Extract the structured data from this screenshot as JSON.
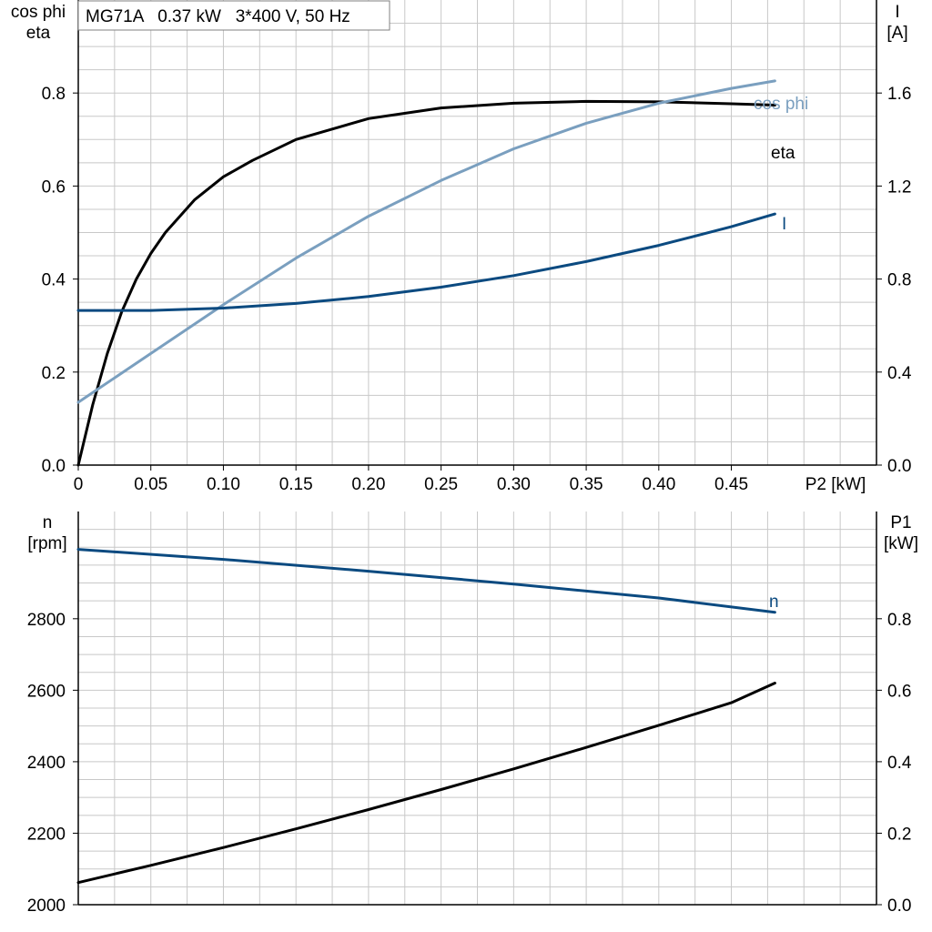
{
  "colors": {
    "eta": "#000000",
    "cos_phi": "#7a9fbf",
    "I": "#0b4a80",
    "n": "#0b4a80",
    "P1": "#000000",
    "grid": "#c8c8c8"
  },
  "chart_data": [
    {
      "type": "line",
      "title": "MG71A   0.37 kW   3*400 V, 50 Hz",
      "xlabel": "P2 [kW]",
      "ylabel_left": [
        "cos phi",
        "eta"
      ],
      "ylabel_right": [
        "I",
        "[A]"
      ],
      "xlim": [
        0,
        0.55
      ],
      "ylim_left": [
        0,
        1.0
      ],
      "ylim_right": [
        0,
        2.0
      ],
      "x_ticks": [
        "0",
        "0.05",
        "0.10",
        "0.15",
        "0.20",
        "0.25",
        "0.30",
        "0.35",
        "0.40",
        "0.45"
      ],
      "y_left_ticks": [
        "0.0",
        "0.2",
        "0.4",
        "0.6",
        "0.8"
      ],
      "y_right_ticks": [
        "0.0",
        "0.4",
        "0.8",
        "1.2",
        "1.6"
      ],
      "grid": true,
      "series": [
        {
          "name": "eta",
          "axis": "left",
          "color": "#000000",
          "x": [
            0,
            0.01,
            0.02,
            0.03,
            0.04,
            0.05,
            0.06,
            0.08,
            0.1,
            0.12,
            0.15,
            0.2,
            0.25,
            0.3,
            0.35,
            0.4,
            0.45,
            0.48
          ],
          "y": [
            0.0,
            0.13,
            0.24,
            0.33,
            0.4,
            0.455,
            0.5,
            0.57,
            0.62,
            0.655,
            0.7,
            0.745,
            0.768,
            0.778,
            0.782,
            0.781,
            0.777,
            0.774
          ]
        },
        {
          "name": "cos phi",
          "axis": "left",
          "color": "#7a9fbf",
          "x": [
            0,
            0.05,
            0.1,
            0.15,
            0.2,
            0.25,
            0.3,
            0.35,
            0.4,
            0.45,
            0.48
          ],
          "y": [
            0.135,
            0.24,
            0.345,
            0.445,
            0.535,
            0.612,
            0.68,
            0.735,
            0.778,
            0.81,
            0.826
          ]
        },
        {
          "name": "I",
          "axis": "right",
          "color": "#0b4a80",
          "x": [
            0,
            0.05,
            0.1,
            0.15,
            0.2,
            0.25,
            0.3,
            0.35,
            0.4,
            0.45,
            0.48
          ],
          "y": [
            0.665,
            0.665,
            0.675,
            0.695,
            0.725,
            0.765,
            0.815,
            0.875,
            0.945,
            1.025,
            1.08
          ]
        }
      ]
    },
    {
      "type": "line",
      "xlim": [
        0,
        0.55
      ],
      "ylabel_left": [
        "n",
        "[rpm]"
      ],
      "ylabel_right": [
        "P1",
        "[kW]"
      ],
      "ylim_left": [
        2000,
        3100
      ],
      "ylim_right": [
        0,
        1.1
      ],
      "y_left_ticks": [
        "2000",
        "2200",
        "2400",
        "2600",
        "2800"
      ],
      "y_right_ticks": [
        "0.0",
        "0.2",
        "0.4",
        "0.6",
        "0.8"
      ],
      "grid": true,
      "series": [
        {
          "name": "n",
          "axis": "left",
          "color": "#0b4a80",
          "x": [
            0,
            0.1,
            0.2,
            0.3,
            0.4,
            0.48
          ],
          "y": [
            2994,
            2966,
            2933,
            2897,
            2858,
            2818
          ]
        },
        {
          "name": "",
          "axis": "right",
          "color": "#000000",
          "x": [
            0,
            0.05,
            0.1,
            0.15,
            0.2,
            0.25,
            0.3,
            0.35,
            0.4,
            0.45,
            0.48
          ],
          "y": [
            0.062,
            0.11,
            0.16,
            0.212,
            0.266,
            0.322,
            0.38,
            0.44,
            0.502,
            0.565,
            0.62
          ]
        }
      ]
    }
  ]
}
